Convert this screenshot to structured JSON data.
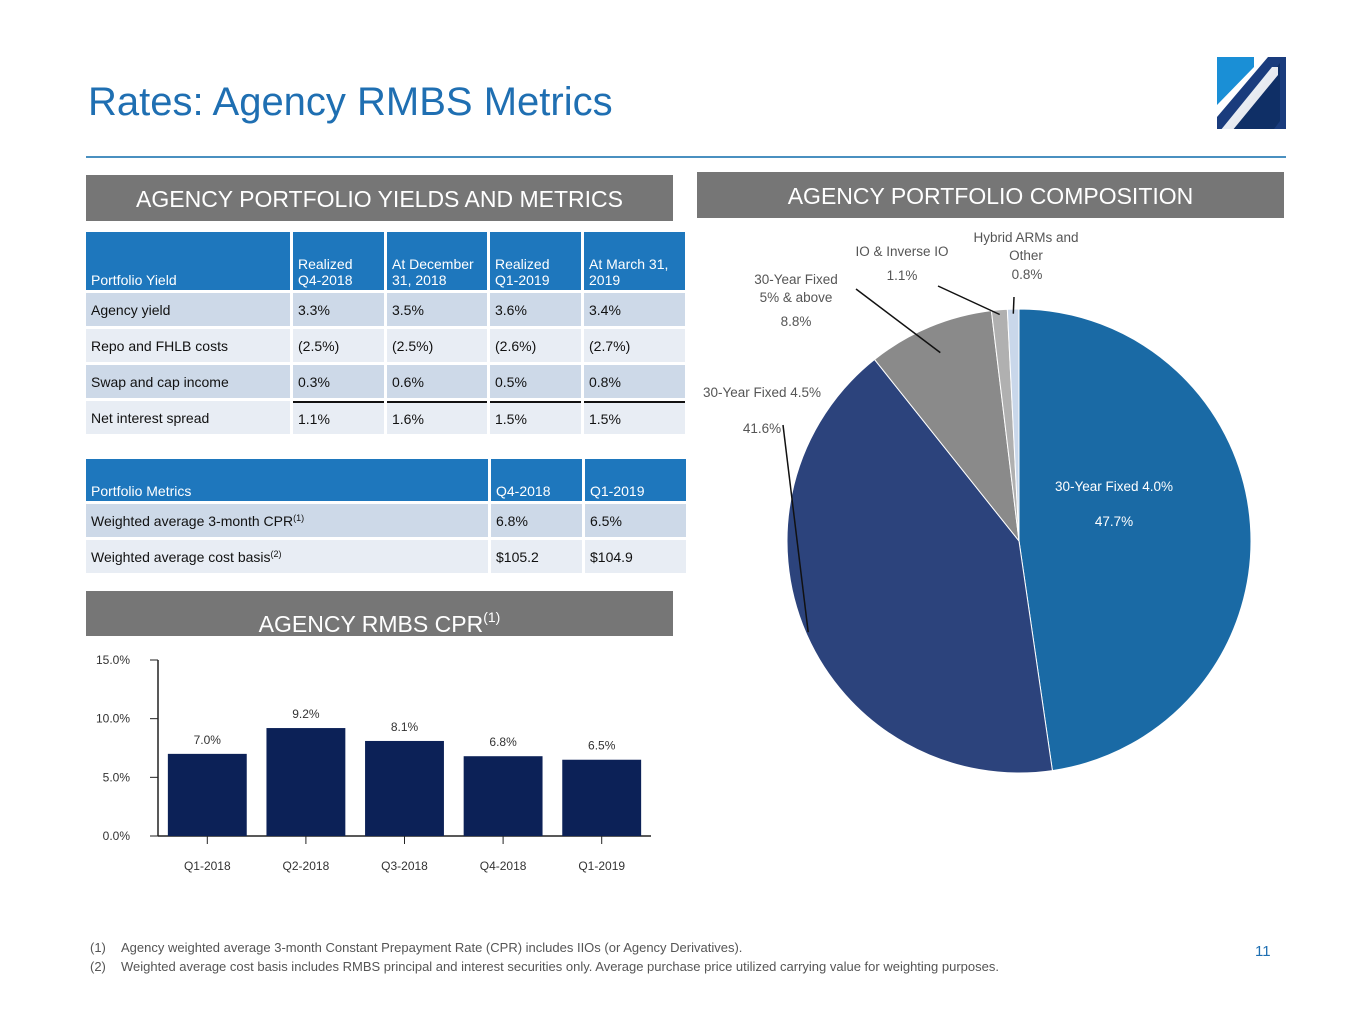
{
  "title": "Rates: Agency RMBS Metrics",
  "page_number": "11",
  "colors": {
    "accent": "#1f6fb2",
    "banner": "#767676",
    "header_fill": "#1e77bd",
    "bar": "#0c2157"
  },
  "sections": {
    "yields": "AGENCY PORTFOLIO YIELDS AND METRICS",
    "composition": "AGENCY PORTFOLIO COMPOSITION",
    "cpr_title": "AGENCY RMBS CPR",
    "cpr_sup": "(1)"
  },
  "yield_table": {
    "headers": [
      "Portfolio Yield",
      "Realized Q4-2018",
      "At December 31, 2018",
      "Realized Q1-2019",
      "At March 31, 2019"
    ],
    "rows": [
      [
        "Agency yield",
        "3.3%",
        "3.5%",
        "3.6%",
        "3.4%"
      ],
      [
        "Repo and FHLB costs",
        "(2.5%)",
        "(2.5%)",
        "(2.6%)",
        "(2.7%)"
      ],
      [
        "Swap and cap income",
        "0.3%",
        "0.6%",
        "0.5%",
        "0.8%"
      ],
      [
        "Net interest spread",
        "1.1%",
        "1.6%",
        "1.5%",
        "1.5%"
      ]
    ]
  },
  "metrics_table": {
    "headers": [
      "Portfolio Metrics",
      "Q4-2018",
      "Q1-2019"
    ],
    "rows": [
      {
        "label": "Weighted average 3-month CPR",
        "sup": "(1)",
        "values": [
          "6.8%",
          "6.5%"
        ]
      },
      {
        "label": "Weighted average cost basis",
        "sup": "(2)",
        "values": [
          "$105.2",
          "$104.9"
        ]
      }
    ]
  },
  "chart_data": [
    {
      "type": "bar",
      "title": "AGENCY RMBS CPR(1)",
      "categories": [
        "Q1-2018",
        "Q2-2018",
        "Q3-2018",
        "Q4-2018",
        "Q1-2019"
      ],
      "values": [
        7.0,
        9.2,
        8.1,
        6.8,
        6.5
      ],
      "value_labels": [
        "7.0%",
        "9.2%",
        "8.1%",
        "6.8%",
        "6.5%"
      ],
      "ylim": [
        0,
        15
      ],
      "yticks": [
        0,
        5,
        10,
        15
      ],
      "ytick_labels": [
        "0.0%",
        "5.0%",
        "10.0%",
        "15.0%"
      ],
      "grid": false,
      "color": "#0c2157"
    },
    {
      "type": "pie",
      "title": "AGENCY PORTFOLIO COMPOSITION",
      "slices": [
        {
          "label": "30-Year Fixed 4.0%",
          "value": 47.7,
          "value_label": "47.7%",
          "color": "#1a6aa5"
        },
        {
          "label": "30-Year Fixed 4.5%",
          "value": 41.6,
          "value_label": "41.6%",
          "color": "#2c437c"
        },
        {
          "label": "30-Year Fixed 5% & above",
          "value": 8.8,
          "value_label": "8.8%",
          "color": "#8a8a8a"
        },
        {
          "label": "IO & Inverse IO",
          "value": 1.1,
          "value_label": "1.1%",
          "color": "#b0b0b0"
        },
        {
          "label": "Hybrid ARMs and Other",
          "value": 0.8,
          "value_label": "0.8%",
          "color": "#c9d7ea"
        }
      ]
    }
  ],
  "footnotes": [
    {
      "num": "(1)",
      "text": "Agency weighted average 3-month Constant Prepayment Rate (CPR) includes IIOs (or Agency Derivatives)."
    },
    {
      "num": "(2)",
      "text": "Weighted average cost basis includes RMBS principal and interest securities only.  Average purchase price utilized carrying value for weighting purposes."
    }
  ]
}
